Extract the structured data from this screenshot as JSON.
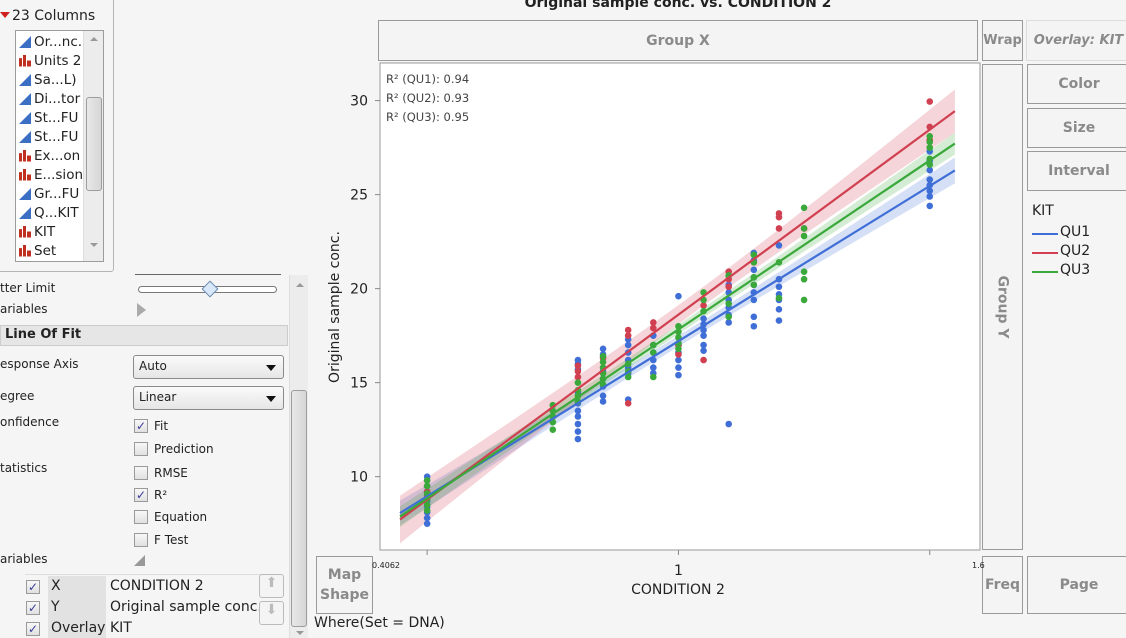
{
  "columns_panel": {
    "title": "23 Columns",
    "items": [
      {
        "label": "Or...nc.",
        "type": "continuous"
      },
      {
        "label": "Units 2",
        "type": "nominal"
      },
      {
        "label": "Sa...L)",
        "type": "continuous"
      },
      {
        "label": "Di...tor",
        "type": "continuous"
      },
      {
        "label": "St...FU",
        "type": "continuous"
      },
      {
        "label": "St...FU",
        "type": "continuous"
      },
      {
        "label": "Ex...on",
        "type": "nominal"
      },
      {
        "label": "E...sion",
        "type": "nominal"
      },
      {
        "label": "Gr...FU",
        "type": "continuous"
      },
      {
        "label": "Q...KIT",
        "type": "continuous"
      },
      {
        "label": "KIT",
        "type": "nominal"
      },
      {
        "label": "Set",
        "type": "nominal"
      }
    ]
  },
  "props": {
    "jitter_limit": "tter Limit",
    "jitter_value": 0.52,
    "variables_top": "ariables",
    "section": "Line Of Fit",
    "response_axis": {
      "label": "esponse Axis",
      "value": "Auto"
    },
    "degree": {
      "label": "egree",
      "value": "Linear"
    },
    "confidence_label": "onfidence",
    "statistics_label": "tatistics",
    "variables_label": "ariables",
    "checks": [
      {
        "label": "Fit",
        "checked": true
      },
      {
        "label": "Prediction",
        "checked": false
      },
      {
        "label": "RMSE",
        "checked": false
      },
      {
        "label": "R²",
        "checked": true
      },
      {
        "label": "Equation",
        "checked": false
      },
      {
        "label": "F Test",
        "checked": false
      }
    ],
    "roles": [
      {
        "role": "X",
        "column": "CONDITION 2",
        "checked": true
      },
      {
        "role": "Y",
        "column": "Original sample conc.",
        "checked": true
      },
      {
        "role": "Overlay",
        "column": "KIT",
        "checked": true
      }
    ]
  },
  "zones": {
    "group_x": "Group X",
    "group_y": "Group Y",
    "wrap": "Wrap",
    "overlay": "Overlay: KIT",
    "color": "Color",
    "size": "Size",
    "interval": "Interval",
    "map_shape_1": "Map",
    "map_shape_2": "Shape",
    "freq": "Freq",
    "page": "Page"
  },
  "where": "Where(Set = DNA)",
  "legend": {
    "title": "KIT",
    "items": [
      {
        "label": "QU1",
        "color": "#3f6fd6"
      },
      {
        "label": "QU2",
        "color": "#d04050"
      },
      {
        "label": "QU3",
        "color": "#3aa83a"
      }
    ]
  },
  "chart_data": {
    "type": "scatter",
    "title": "Original sample conc. vs. CONDITION 2",
    "xlabel": "CONDITION 2",
    "ylabel": "Original sample conc.",
    "xlim": [
      0.4062,
      1.6
    ],
    "ylim": [
      6.1,
      32
    ],
    "x_tick_labels": [
      {
        "value": 0.4062,
        "label": "0.4062"
      },
      {
        "value": 1,
        "label": "1"
      },
      {
        "value": 1.6,
        "label": "1.6"
      }
    ],
    "yticks": [
      10,
      15,
      20,
      25,
      30
    ],
    "fit": "linear",
    "confidence": "fit",
    "annotations": [
      "R² (QU1): 0.94",
      "R² (QU2): 0.93",
      "R² (QU3): 0.95"
    ],
    "series": [
      {
        "name": "QU1",
        "color": "#3f6fd6",
        "points": [
          [
            0.5,
            [
              10.0,
              9.8,
              9.5,
              9.2,
              9.0,
              8.7,
              8.4,
              8.1,
              7.8,
              7.5
            ]
          ],
          [
            0.8,
            [
              16.2,
              16.0,
              15.7,
              14.5,
              13.9,
              13.5,
              13.2,
              12.8,
              12.4,
              12.0
            ]
          ],
          [
            0.85,
            [
              16.8,
              16.5,
              15.6,
              15.2,
              14.8,
              14.3,
              14.0
            ]
          ],
          [
            0.9,
            [
              17.3,
              17.0,
              16.6,
              16.2,
              15.8,
              15.5,
              14.1
            ]
          ],
          [
            0.95,
            [
              17.5,
              17.0,
              16.6,
              16.2,
              15.8,
              15.5
            ]
          ],
          [
            1.0,
            [
              19.6,
              17.0,
              16.6,
              16.2,
              15.8,
              15.4
            ]
          ],
          [
            1.05,
            [
              18.4,
              18.1,
              17.8,
              17.5,
              17.0,
              16.7
            ]
          ],
          [
            1.1,
            [
              20.2,
              19.8,
              19.4,
              19.0,
              18.6,
              18.2,
              12.8
            ]
          ],
          [
            1.15,
            [
              21.9,
              21.5,
              21.0,
              20.6,
              20.2,
              19.8,
              19.4,
              18.5,
              18.0
            ]
          ],
          [
            1.2,
            [
              22.3,
              20.5,
              20.1,
              19.7,
              19.4,
              18.9,
              18.3
            ]
          ],
          [
            1.5,
            [
              27.3,
              26.8,
              26.3,
              25.8,
              25.5,
              25.2,
              24.9,
              24.4
            ]
          ]
        ]
      },
      {
        "name": "QU2",
        "color": "#d04050",
        "points": [
          [
            0.5,
            [
              9.2,
              8.9
            ]
          ],
          [
            0.8,
            [
              15.9,
              15.6,
              15.3
            ]
          ],
          [
            0.85,
            [
              16.3
            ]
          ],
          [
            0.9,
            [
              17.8,
              17.5,
              13.9
            ]
          ],
          [
            0.95,
            [
              18.2,
              17.9
            ]
          ],
          [
            1.0,
            [
              17.0,
              16.5
            ]
          ],
          [
            1.05,
            [
              19.1,
              16.2
            ]
          ],
          [
            1.1,
            [
              20.9,
              20.5,
              20.1
            ]
          ],
          [
            1.15,
            [
              21.4
            ]
          ],
          [
            1.2,
            [
              24.0,
              23.8,
              23.2
            ]
          ],
          [
            1.25,
            [
              23.2
            ]
          ],
          [
            1.5,
            [
              29.95,
              28.6,
              27.9
            ]
          ]
        ]
      },
      {
        "name": "QU3",
        "color": "#3aa83a",
        "points": [
          [
            0.5,
            [
              9.8,
              9.5,
              9.1,
              8.8,
              8.5,
              8.2
            ]
          ],
          [
            0.75,
            [
              13.8,
              13.5,
              13.2,
              12.9,
              12.5
            ]
          ],
          [
            0.8,
            [
              15.0,
              14.6,
              14.3,
              14.0
            ]
          ],
          [
            0.85,
            [
              16.4,
              16.1,
              15.8,
              15.5,
              15.2,
              14.9
            ]
          ],
          [
            0.9,
            [
              16.0,
              15.6,
              15.3
            ]
          ],
          [
            0.95,
            [
              17.0,
              16.6,
              15.3
            ]
          ],
          [
            1.0,
            [
              18.0,
              17.7,
              17.4,
              17.1,
              16.8
            ]
          ],
          [
            1.05,
            [
              19.8,
              19.4,
              18.8
            ]
          ],
          [
            1.1,
            [
              20.7,
              19.2,
              18.5
            ]
          ],
          [
            1.15,
            [
              21.8,
              21.4,
              20.6,
              20.2
            ]
          ],
          [
            1.2,
            [
              21.4,
              19.5
            ]
          ],
          [
            1.25,
            [
              24.3,
              23.2,
              22.8,
              20.9,
              20.5,
              19.4
            ]
          ],
          [
            1.5,
            [
              28.1,
              27.8,
              27.5,
              26.9,
              26.6
            ]
          ]
        ]
      }
    ]
  }
}
